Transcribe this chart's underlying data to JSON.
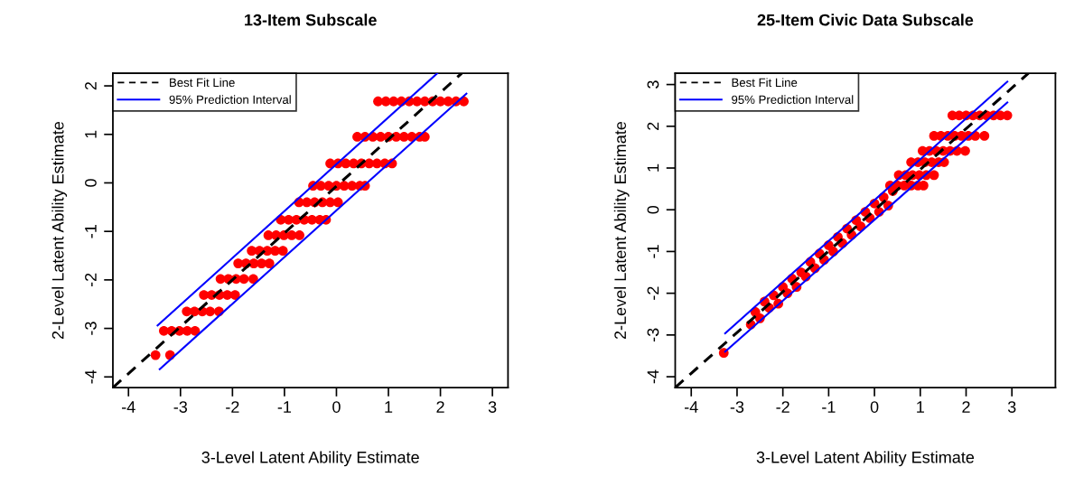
{
  "chart_data": [
    {
      "type": "scatter",
      "title": "13-Item Subscale",
      "xlabel": "3-Level Latent Ability Estimate",
      "ylabel": "2-Level Latent Ability Estimate",
      "xlim": [
        -4.3,
        3.3
      ],
      "ylim": [
        -4.22,
        2.26
      ],
      "xticks": [
        -4,
        -3,
        -2,
        -1,
        0,
        1,
        2,
        3
      ],
      "yticks": [
        -4,
        -3,
        -2,
        -1,
        0,
        1,
        2
      ],
      "grid": false,
      "legend": "top left",
      "series": [
        {
          "color": "#ff0000",
          "marker": "circle",
          "x": [
            0.8,
            0.95,
            1.1,
            1.25,
            1.4,
            1.55,
            1.7,
            1.85,
            2.0,
            2.15,
            2.3,
            2.45,
            0.4,
            0.55,
            0.7,
            0.85,
            1.0,
            1.15,
            1.3,
            1.45,
            1.6,
            1.7,
            -0.12,
            0.03,
            0.18,
            0.33,
            0.48,
            0.63,
            0.78,
            0.93,
            1.07,
            -0.45,
            -0.3,
            -0.15,
            0,
            0.15,
            0.3,
            0.45,
            0.55,
            -0.72,
            -0.57,
            -0.42,
            -0.27,
            -0.12,
            0.03,
            -1.07,
            -0.92,
            -0.77,
            -0.62,
            -0.47,
            -0.32,
            -0.2,
            -1.31,
            -1.16,
            -1.01,
            -0.86,
            -0.71,
            -1.63,
            -1.48,
            -1.33,
            -1.18,
            -1.03,
            -1.89,
            -1.74,
            -1.59,
            -1.44,
            -1.29,
            -2.23,
            -2.08,
            -1.93,
            -1.78,
            -1.6,
            -2.55,
            -2.4,
            -2.25,
            -2.1,
            -1.95,
            -2.88,
            -2.73,
            -2.58,
            -2.43,
            -2.26,
            -3.32,
            -3.17,
            -3.02,
            -2.87,
            -2.72,
            -3.48,
            -3.2
          ],
          "values": [
            1.68,
            1.68,
            1.68,
            1.68,
            1.68,
            1.68,
            1.68,
            1.68,
            1.68,
            1.68,
            1.68,
            1.68,
            0.95,
            0.95,
            0.95,
            0.95,
            0.95,
            0.95,
            0.95,
            0.95,
            0.95,
            0.95,
            0.4,
            0.4,
            0.4,
            0.4,
            0.4,
            0.4,
            0.4,
            0.4,
            0.4,
            -0.06,
            -0.06,
            -0.06,
            -0.06,
            -0.06,
            -0.06,
            -0.06,
            -0.06,
            -0.4,
            -0.4,
            -0.4,
            -0.4,
            -0.4,
            -0.4,
            -0.76,
            -0.76,
            -0.76,
            -0.76,
            -0.76,
            -0.76,
            -0.76,
            -1.08,
            -1.08,
            -1.08,
            -1.08,
            -1.08,
            -1.4,
            -1.4,
            -1.4,
            -1.4,
            -1.4,
            -1.66,
            -1.66,
            -1.66,
            -1.66,
            -1.66,
            -1.98,
            -1.98,
            -1.98,
            -1.98,
            -1.98,
            -2.31,
            -2.31,
            -2.31,
            -2.31,
            -2.31,
            -2.65,
            -2.65,
            -2.65,
            -2.65,
            -2.65,
            -3.05,
            -3.05,
            -3.05,
            -3.05,
            -3.05,
            -3.55,
            -3.55
          ]
        },
        {
          "type": "line",
          "name": "Best Fit Line",
          "color": "#000000",
          "line_style": "dashed",
          "marker": "none",
          "x": [
            -4.3,
            2.41
          ],
          "values": [
            -4.22,
            2.26
          ]
        },
        {
          "type": "line",
          "name": "95% Prediction Interval",
          "color": "#0000ff",
          "line_style": "solid",
          "marker": "none",
          "x": [
            -3.44,
            1.94
          ],
          "values": [
            -2.94,
            2.26
          ]
        },
        {
          "type": "line",
          "color": "#0000ff",
          "line_style": "solid",
          "marker": "none",
          "x": [
            -3.4,
            2.5
          ],
          "values": [
            -3.84,
            1.84
          ]
        }
      ]
    },
    {
      "type": "scatter",
      "title": "25-Item Civic Data Subscale",
      "xlabel": "3-Level Latent Ability Estimate",
      "ylabel": "2-Level Latent Ability Estimate",
      "xlim": [
        -4.35,
        3.95
      ],
      "ylim": [
        -4.26,
        3.27
      ],
      "xticks": [
        -4,
        -3,
        -2,
        -1,
        0,
        1,
        2,
        3
      ],
      "yticks": [
        -4,
        -3,
        -2,
        -1,
        0,
        1,
        2,
        3
      ],
      "grid": false,
      "legend": "top left",
      "series": [
        {
          "color": "#ff0000",
          "marker": "circle",
          "x": [
            1.7,
            1.85,
            2.0,
            2.15,
            2.3,
            2.45,
            2.6,
            2.75,
            2.9,
            1.3,
            1.45,
            1.6,
            1.75,
            1.9,
            2.05,
            2.2,
            2.4,
            1.05,
            1.2,
            1.35,
            1.5,
            1.65,
            1.8,
            1.98,
            0.8,
            0.95,
            1.1,
            1.25,
            1.4,
            1.52,
            0.53,
            0.68,
            0.83,
            0.98,
            1.13,
            1.3,
            0.34,
            0.5,
            0.65,
            0.8,
            0.95,
            1.07,
            -2.7,
            -2.6,
            -2.5,
            -2.4,
            -2.3,
            -2.2,
            -2.1,
            -2.0,
            -1.9,
            -1.8,
            -1.7,
            -1.6,
            -1.5,
            -1.4,
            -1.3,
            -1.2,
            -1.1,
            -1.0,
            -0.9,
            -0.8,
            -0.7,
            -0.6,
            -0.5,
            -0.4,
            -0.3,
            -0.2,
            -0.1,
            0.0,
            0.1,
            0.2,
            0.3,
            0.4,
            -3.29
          ],
          "values": [
            2.26,
            2.26,
            2.26,
            2.26,
            2.26,
            2.26,
            2.26,
            2.26,
            2.26,
            1.77,
            1.77,
            1.77,
            1.77,
            1.77,
            1.77,
            1.77,
            1.77,
            1.41,
            1.41,
            1.41,
            1.41,
            1.41,
            1.41,
            1.41,
            1.14,
            1.14,
            1.14,
            1.14,
            1.14,
            1.14,
            0.83,
            0.83,
            0.83,
            0.83,
            0.83,
            0.83,
            0.58,
            0.58,
            0.58,
            0.58,
            0.58,
            0.58,
            -2.75,
            -2.45,
            -2.6,
            -2.2,
            -2.35,
            -2.05,
            -2.25,
            -1.85,
            -2.0,
            -1.65,
            -1.85,
            -1.5,
            -1.6,
            -1.25,
            -1.4,
            -1.05,
            -1.2,
            -0.85,
            -1.0,
            -0.65,
            -0.8,
            -0.45,
            -0.6,
            -0.25,
            -0.4,
            -0.05,
            -0.2,
            0.15,
            -0.05,
            0.3,
            0.1,
            0.45,
            -3.43
          ]
        },
        {
          "type": "line",
          "name": "Best Fit Line",
          "color": "#000000",
          "line_style": "dashed",
          "marker": "none",
          "x": [
            -4.35,
            3.36
          ],
          "values": [
            -4.26,
            3.27
          ]
        },
        {
          "type": "line",
          "name": "95% Prediction Interval",
          "color": "#0000ff",
          "line_style": "solid",
          "marker": "none",
          "x": [
            -3.26,
            2.9
          ],
          "values": [
            -2.96,
            3.07
          ]
        },
        {
          "type": "line",
          "color": "#0000ff",
          "line_style": "solid",
          "marker": "none",
          "x": [
            -3.26,
            2.9
          ],
          "values": [
            -3.4,
            2.57
          ]
        }
      ]
    }
  ]
}
